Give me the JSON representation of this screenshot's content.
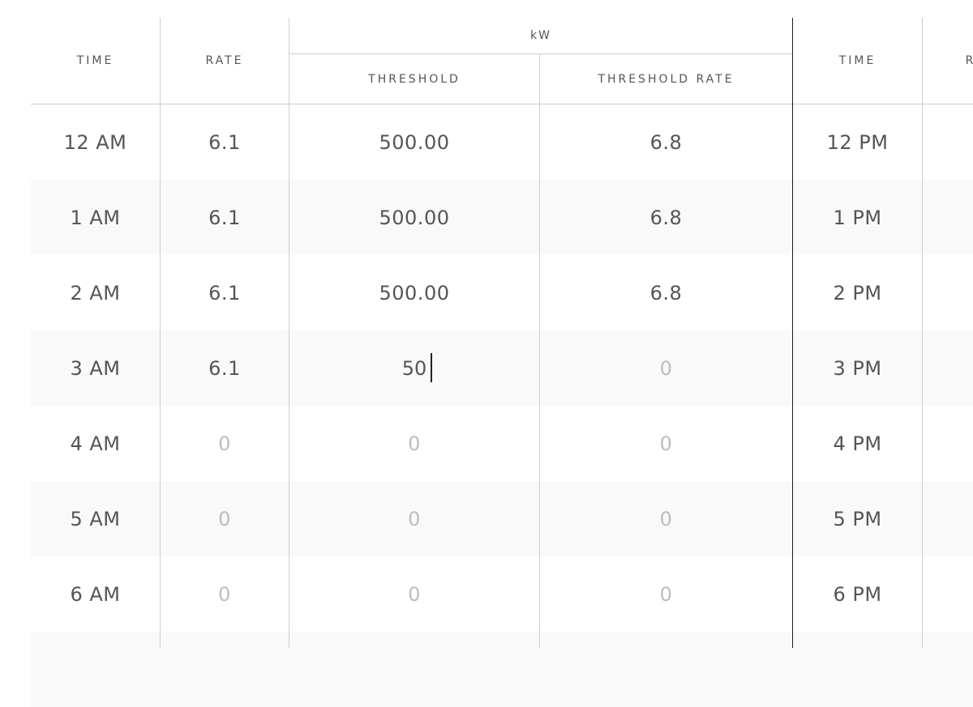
{
  "header": {
    "time": "TIME",
    "rate": "RATE",
    "kw_group": "kW",
    "threshold": "THRESHOLD",
    "threshold_rate": "THRESHOLD RATE",
    "time_pm": "TIME",
    "rate_pm_partial": "R"
  },
  "rows": [
    {
      "am": "12 AM",
      "rate": "6.1",
      "threshold": "500.00",
      "threshold_rate": "6.8",
      "pm": "12 PM"
    },
    {
      "am": "1 AM",
      "rate": "6.1",
      "threshold": "500.00",
      "threshold_rate": "6.8",
      "pm": "1 PM"
    },
    {
      "am": "2 AM",
      "rate": "6.1",
      "threshold": "500.00",
      "threshold_rate": "6.8",
      "pm": "2 PM"
    },
    {
      "am": "3 AM",
      "rate": "6.1",
      "threshold": "50",
      "threshold_rate": "0",
      "pm": "3 PM",
      "editing": "threshold"
    },
    {
      "am": "4 AM",
      "rate": "0",
      "threshold": "0",
      "threshold_rate": "0",
      "pm": "4 PM"
    },
    {
      "am": "5 AM",
      "rate": "0",
      "threshold": "0",
      "threshold_rate": "0",
      "pm": "5 PM"
    },
    {
      "am": "6 AM",
      "rate": "0",
      "threshold": "0",
      "threshold_rate": "0",
      "pm": "6 PM"
    }
  ],
  "placeholder_value": "0",
  "colors": {
    "text": "#555555",
    "placeholder": "#bdbdbd",
    "stripe": "#f9f9f9",
    "grid_line": "#cfcfcf",
    "divider": "#1e1e1e"
  }
}
